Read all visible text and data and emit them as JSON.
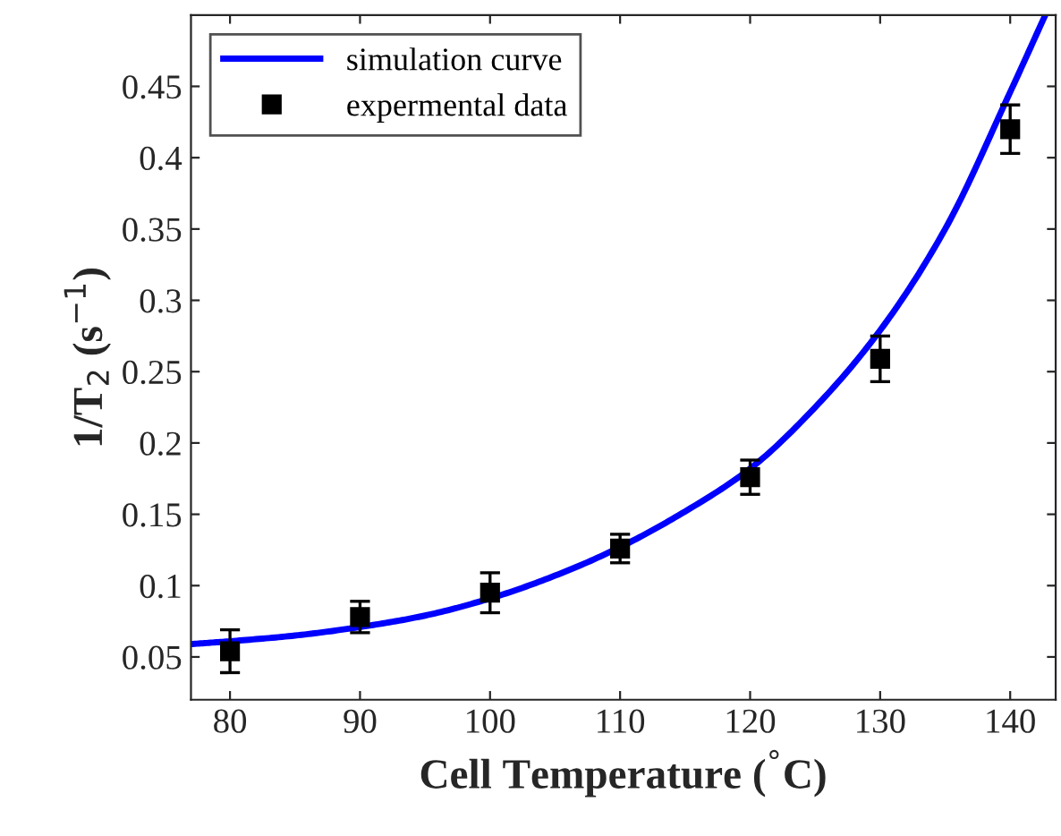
{
  "chart_data": {
    "type": "line",
    "xlabel": "Cell Temperature ($^{°}$C)",
    "ylabel": "1/T$_{2}$ (s$^{−1}$)",
    "series": [
      {
        "name": "simulation curve",
        "color": "#0000ff",
        "marker": "none",
        "line_style": "solid",
        "x": [
          77,
          80,
          85,
          90,
          95,
          100,
          105,
          110,
          115,
          120,
          125,
          130,
          135,
          140,
          142.7
        ],
        "values": [
          0.059,
          0.061,
          0.065,
          0.071,
          0.079,
          0.091,
          0.107,
          0.127,
          0.152,
          0.182,
          0.225,
          0.279,
          0.35,
          0.446,
          0.5
        ]
      },
      {
        "name": "expermental data",
        "type": "scatter",
        "color": "#000000",
        "marker": "square",
        "x": [
          80,
          90,
          100,
          110,
          120,
          130,
          140
        ],
        "values": [
          0.054,
          0.078,
          0.095,
          0.126,
          0.176,
          0.259,
          0.42
        ],
        "errors": [
          0.015,
          0.011,
          0.014,
          0.01,
          0.012,
          0.016,
          0.017
        ]
      }
    ],
    "xlim": [
      77,
      143.5
    ],
    "ylim": [
      0.02,
      0.5
    ],
    "xticks": [
      80,
      90,
      100,
      110,
      120,
      130,
      140
    ],
    "yticks": [
      0.05,
      0.1,
      0.15,
      0.2,
      0.25,
      0.3,
      0.35,
      0.4,
      0.45
    ],
    "grid": false,
    "legend": "top left"
  }
}
